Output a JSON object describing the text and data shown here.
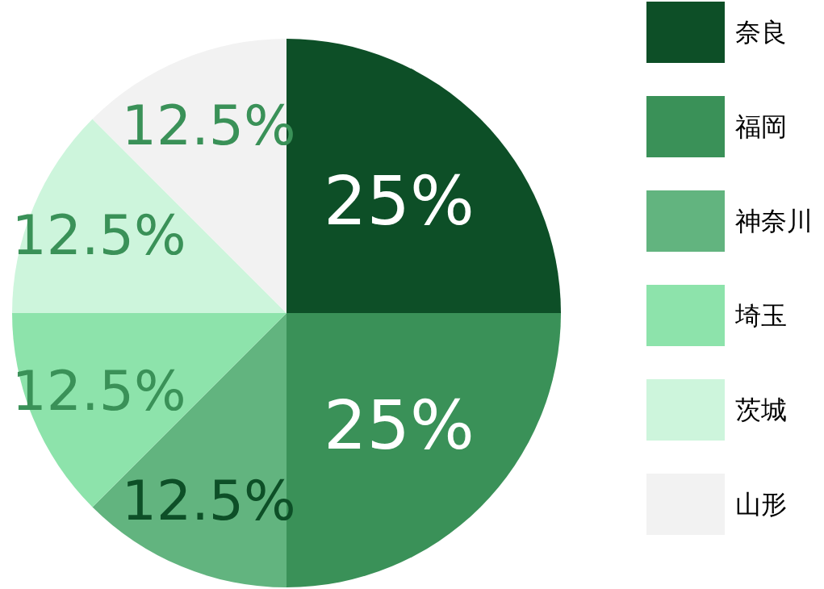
{
  "chart_data": {
    "type": "pie",
    "categories": [
      "奈良",
      "福岡",
      "神奈川",
      "埼玉",
      "茨城",
      "山形"
    ],
    "values": [
      25,
      25,
      12.5,
      12.5,
      12.5,
      12.5
    ],
    "colors": [
      "#0d4f27",
      "#3a9158",
      "#62b47f",
      "#8de3ab",
      "#cdf5dc",
      "#f2f2f2"
    ],
    "value_labels": [
      "25%",
      "25%",
      "12.5%",
      "12.5%",
      "12.5%",
      "12.5%"
    ],
    "legend": "right"
  }
}
